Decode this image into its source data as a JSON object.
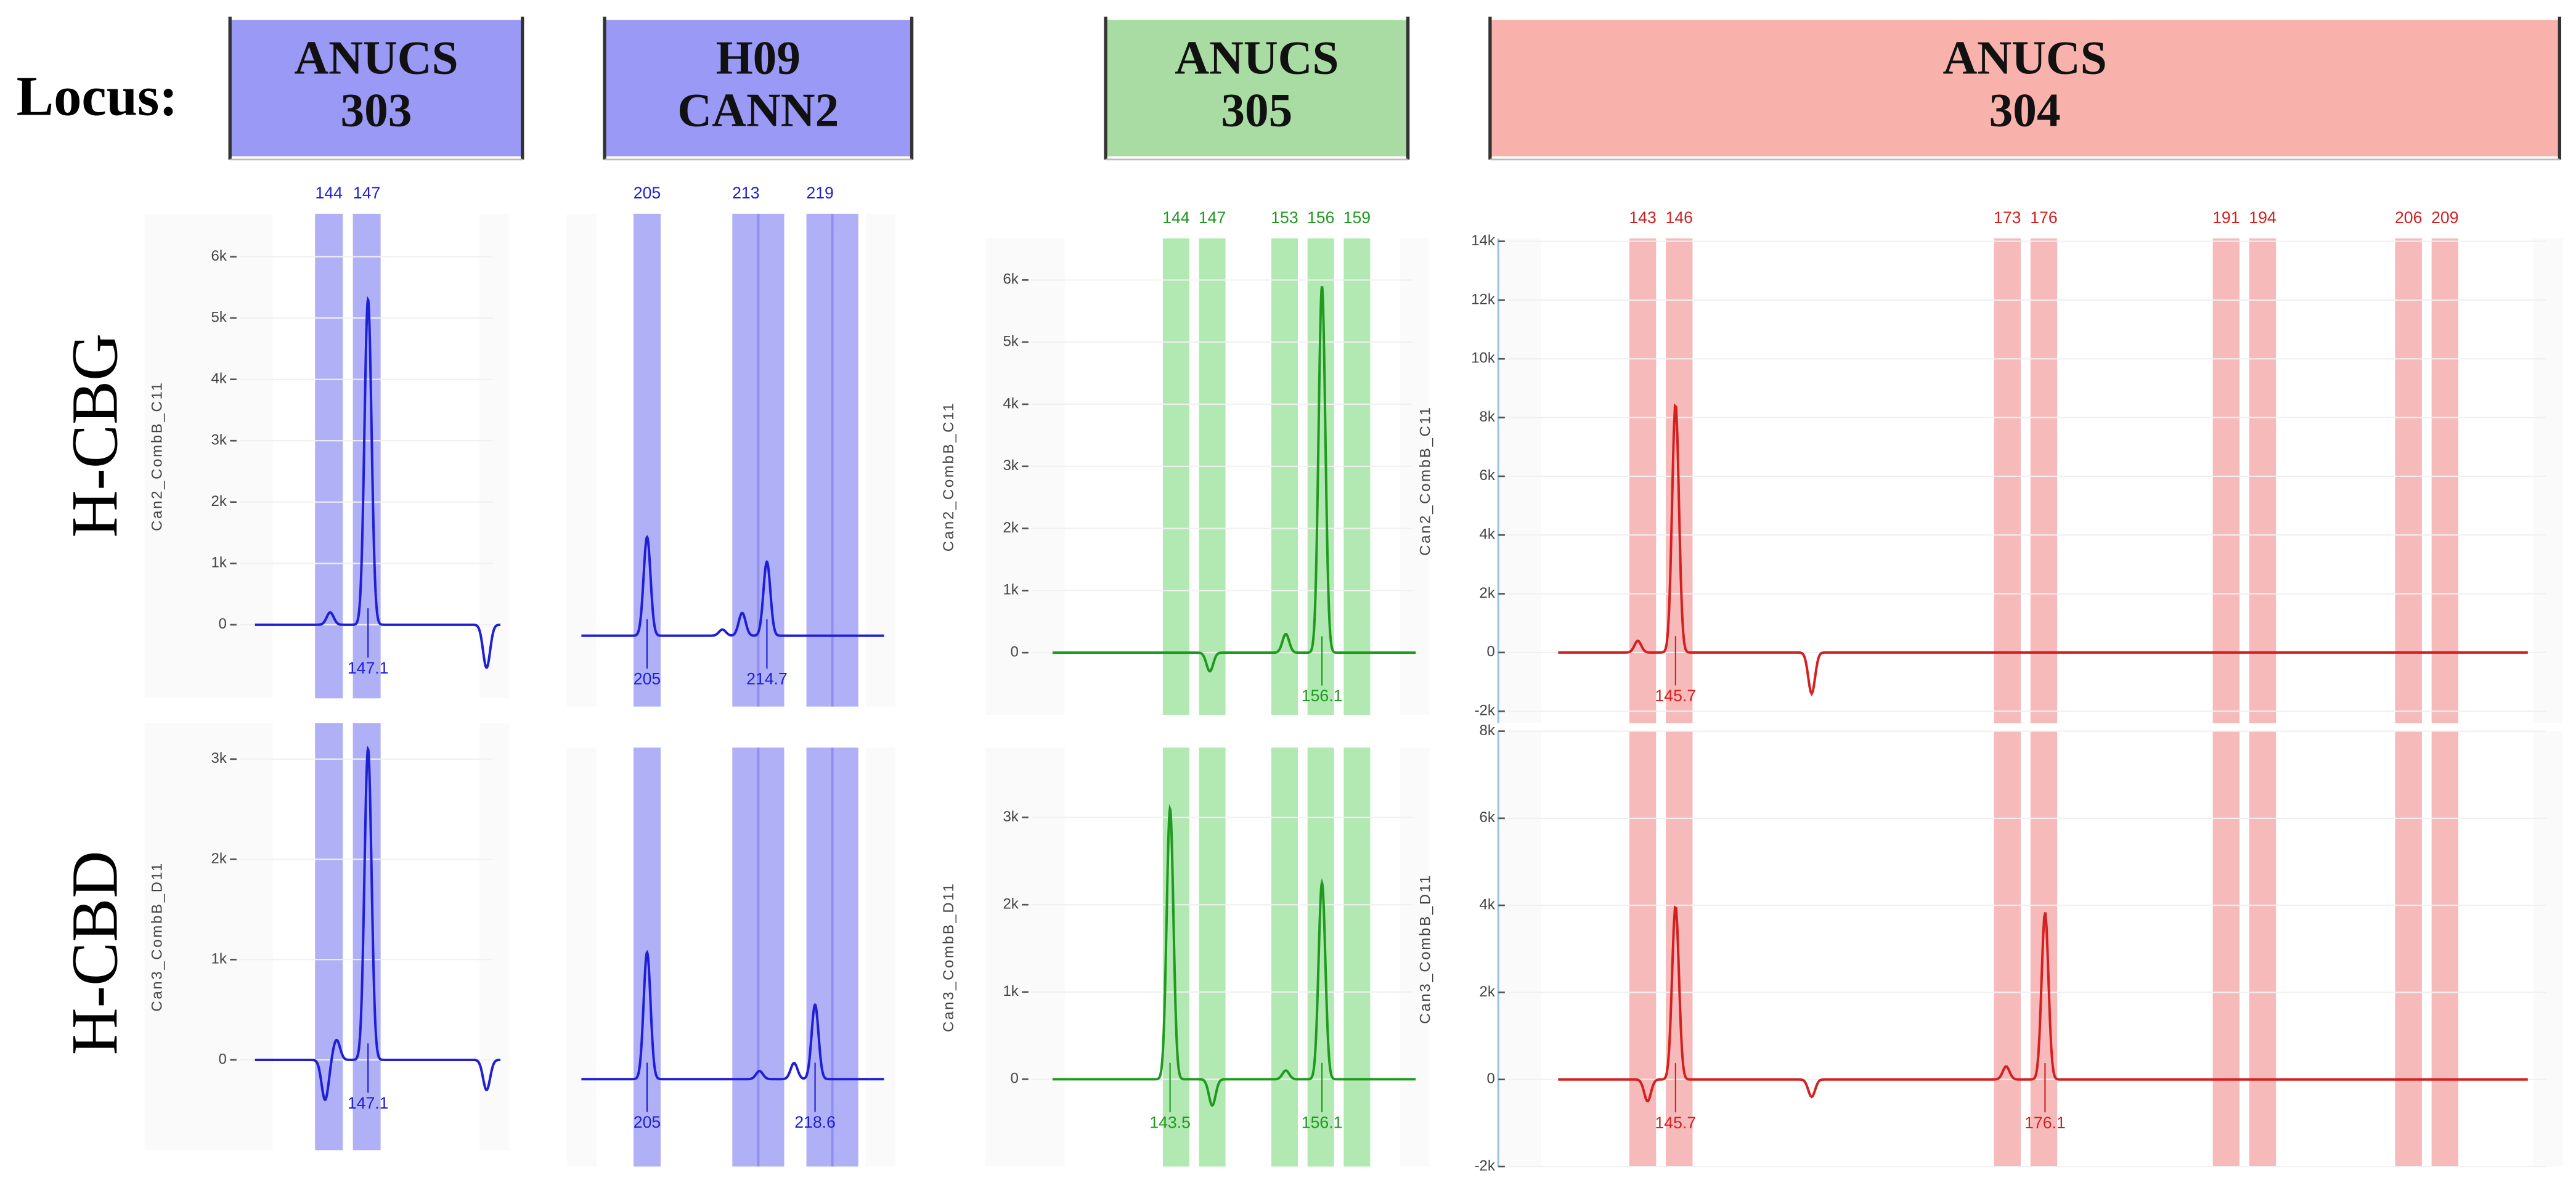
{
  "header": {
    "label": "Locus:"
  },
  "loci": [
    [
      "ANUCS",
      "303"
    ],
    [
      "H09",
      "CANN2"
    ],
    [
      "ANUCS",
      "305"
    ],
    [
      "ANUCS",
      "304"
    ]
  ],
  "rows": [
    "H-CBG",
    "H-CBD"
  ],
  "chart_data": [
    {
      "type": "electropherogram",
      "ylabel": "Can2_CombB_C11",
      "color": "#1f1fd6",
      "bin_color": "#7b7bf0",
      "xlim": [
        137.2,
        158.3
      ],
      "ylim": [
        -1200,
        6700
      ],
      "yticks": [
        0,
        {
          "value": 1000,
          "label": "1k"
        },
        {
          "value": 2000,
          "label": "2k"
        },
        {
          "value": 3000,
          "label": "3k"
        },
        {
          "value": 4000,
          "label": "4k"
        },
        {
          "value": 5000,
          "label": "5k"
        },
        {
          "value": 6000,
          "label": "6k"
        }
      ],
      "bins": [
        144,
        147
      ],
      "bin_labels": [
        "144",
        "147"
      ],
      "peak_sizes": [
        144.1,
        147.1,
        156.5
      ],
      "peak_heights": [
        200,
        5300,
        -700
      ],
      "calls": [
        147.1
      ]
    },
    {
      "type": "electropherogram",
      "color": "#1f1fd6",
      "bin_color": "#7b7bf0",
      "xlim": [
        198.5,
        225.1
      ],
      "ylim": [
        -1150,
        6850
      ],
      "bins": [
        205,
        213,
        215,
        219,
        221
      ],
      "bin_labels": [
        "205",
        "213",
        null,
        "219",
        null
      ],
      "peak_sizes": [
        205,
        211.1,
        212.7,
        214.7
      ],
      "peak_heights": [
        1600,
        100,
        370,
        1200
      ],
      "calls": [
        205,
        214.7
      ]
    },
    {
      "type": "electropherogram",
      "ylabel": "Can2_CombB_C11",
      "color": "#1f9a1f",
      "bin_color": "#7fd87f",
      "xlim": [
        132.3,
        165
      ],
      "ylim": [
        -1000,
        6670
      ],
      "yticks": [
        0,
        {
          "value": 1000,
          "label": "1k"
        },
        {
          "value": 2000,
          "label": "2k"
        },
        {
          "value": 3000,
          "label": "3k"
        },
        {
          "value": 4000,
          "label": "4k"
        },
        {
          "value": 5000,
          "label": "5k"
        },
        {
          "value": 6000,
          "label": "6k"
        }
      ],
      "bins": [
        144,
        147,
        153,
        156,
        159
      ],
      "bin_labels": [
        "144",
        "147",
        "153",
        "156",
        "159"
      ],
      "peak_sizes": [
        146.8,
        153.1,
        156.1
      ],
      "peak_heights": [
        -300,
        300,
        5900
      ],
      "calls": [
        156.1
      ]
    },
    {
      "type": "electropherogram",
      "ylabel": "Can2_CombB_C11",
      "color": "#d42020",
      "bin_color": "#f08c8c",
      "xlim": [
        132.2,
        218.7
      ],
      "ylim": [
        -2400,
        14100
      ],
      "yticks": [
        {
          "value": -2000,
          "label": "-2k"
        },
        0,
        {
          "value": 2000,
          "label": "2k"
        },
        {
          "value": 4000,
          "label": "4k"
        },
        {
          "value": 6000,
          "label": "6k"
        },
        {
          "value": 8000,
          "label": "8k"
        },
        {
          "value": 10000,
          "label": "10k"
        },
        {
          "value": 12000,
          "label": "12k"
        },
        {
          "value": 14000,
          "label": "14k"
        }
      ],
      "bins": [
        143,
        146,
        173,
        176,
        191,
        194,
        206,
        209
      ],
      "bin_labels": [
        "143",
        "146",
        "173",
        "176",
        "191",
        "194",
        "206",
        "209"
      ],
      "peak_sizes": [
        142.6,
        145.7,
        156.9
      ],
      "peak_heights": [
        400,
        8500,
        -1400
      ],
      "calls": [
        145.7
      ]
    },
    {
      "type": "electropherogram",
      "ylabel": "Can3_CombB_D11",
      "color": "#1f1fd6",
      "bin_color": "#7b7bf0",
      "xlim": [
        137.2,
        158.3
      ],
      "ylim": [
        -900,
        3360
      ],
      "yticks": [
        0,
        {
          "value": 1000,
          "label": "1k"
        },
        {
          "value": 2000,
          "label": "2k"
        },
        {
          "value": 3000,
          "label": "3k"
        }
      ],
      "bins": [
        144,
        147
      ],
      "peak_sizes": [
        143.7,
        144.6,
        147.1,
        156.5
      ],
      "peak_heights": [
        -400,
        200,
        3100,
        -300
      ],
      "calls": [
        147.1
      ]
    },
    {
      "type": "electropherogram",
      "color": "#1f1fd6",
      "bin_color": "#7b7bf0",
      "xlim": [
        198.5,
        225.1
      ],
      "ylim": [
        -870,
        3300
      ],
      "bins": [
        205,
        213,
        215,
        219,
        221
      ],
      "peak_sizes": [
        205,
        214.1,
        216.9,
        218.6
      ],
      "peak_heights": [
        1260,
        80,
        160,
        740
      ],
      "calls": [
        205,
        218.6
      ]
    },
    {
      "type": "electropherogram",
      "ylabel": "Can3_CombB_D11",
      "color": "#1f9a1f",
      "bin_color": "#7fd87f",
      "xlim": [
        132.3,
        165
      ],
      "ylim": [
        -1000,
        3800
      ],
      "yticks": [
        0,
        {
          "value": 1000,
          "label": "1k"
        },
        {
          "value": 2000,
          "label": "2k"
        },
        {
          "value": 3000,
          "label": "3k"
        }
      ],
      "bins": [
        144,
        147,
        153,
        156,
        159
      ],
      "peak_sizes": [
        143.5,
        147,
        153.1,
        156.1
      ],
      "peak_heights": [
        3100,
        -300,
        100,
        2250
      ],
      "calls": [
        143.5,
        156.1
      ]
    },
    {
      "type": "electropherogram",
      "ylabel": "Can3_CombB_D11",
      "color": "#d42020",
      "bin_color": "#f08c8c",
      "xlim": [
        132.2,
        218.7
      ],
      "ylim": [
        -2000,
        8000
      ],
      "yticks": [
        {
          "value": -2000,
          "label": "-2k"
        },
        0,
        {
          "value": 2000,
          "label": "2k"
        },
        {
          "value": 4000,
          "label": "4k"
        },
        {
          "value": 6000,
          "label": "6k"
        },
        {
          "value": 8000,
          "label": "8k"
        }
      ],
      "bins": [
        143,
        146,
        173,
        176,
        191,
        194,
        206,
        209
      ],
      "peak_sizes": [
        143.4,
        145.7,
        156.9,
        172.9,
        176.1
      ],
      "peak_heights": [
        -500,
        4000,
        -400,
        300,
        3850
      ],
      "calls": [
        145.7,
        176.1
      ]
    }
  ]
}
